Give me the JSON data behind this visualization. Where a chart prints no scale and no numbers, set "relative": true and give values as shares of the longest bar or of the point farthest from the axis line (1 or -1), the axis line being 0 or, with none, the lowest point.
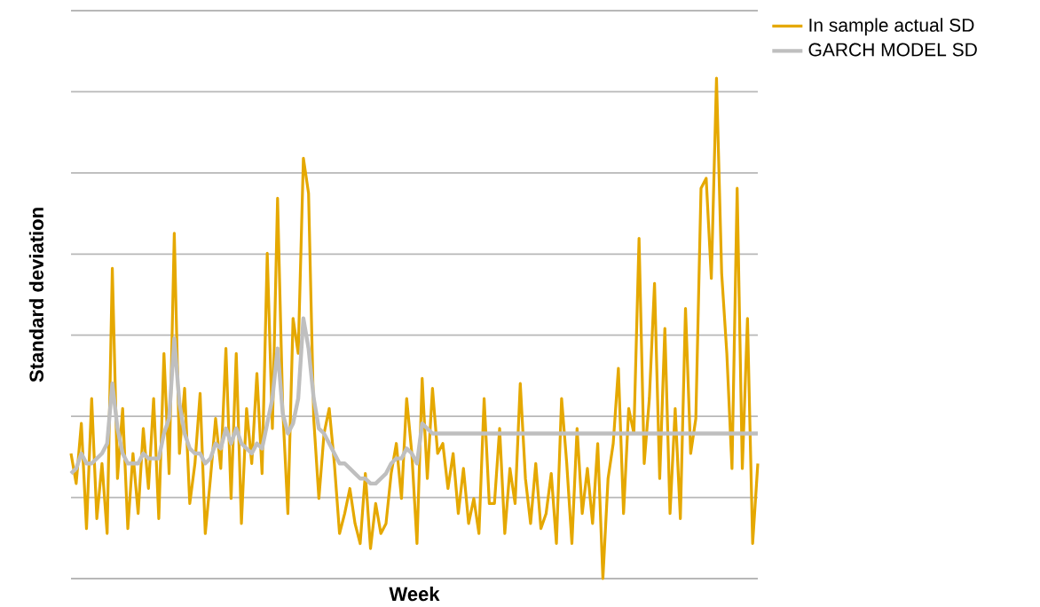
{
  "chart_data": {
    "type": "line",
    "relative": true,
    "xlabel": "Week",
    "ylabel": "Standard deviation",
    "grid": "y",
    "legend": "top right",
    "categories": [
      null,
      null,
      null,
      null,
      null,
      null,
      null,
      null,
      null,
      null,
      null,
      null,
      null,
      null,
      null,
      null,
      null,
      null,
      null,
      null,
      null,
      null,
      null,
      null,
      null,
      null,
      null,
      null,
      null,
      null,
      null,
      null,
      null,
      null,
      null,
      null,
      null,
      null,
      null,
      null,
      null,
      null,
      null,
      null,
      null,
      null,
      null,
      null,
      null,
      null,
      null,
      null,
      null,
      null,
      null,
      null,
      null,
      null,
      null,
      null,
      null,
      null,
      null,
      null,
      null,
      null,
      null,
      null,
      null,
      null,
      null,
      null,
      null,
      null,
      null,
      null,
      null,
      null,
      null,
      null,
      null,
      null,
      null,
      null,
      null,
      null,
      null,
      null,
      null,
      null,
      null,
      null,
      null,
      null,
      null,
      null,
      null,
      null,
      null,
      null,
      null,
      null,
      null,
      null,
      null,
      null,
      null,
      null,
      null,
      null,
      null,
      null,
      null,
      null,
      null,
      null,
      null,
      null,
      null,
      null,
      null,
      null,
      null,
      null,
      null,
      null,
      null,
      null,
      null,
      null,
      null,
      null,
      null,
      null
    ],
    "series": [
      {
        "name": "In sample actual SD",
        "color": "#e5a800",
        "values": [
          0.25,
          0.19,
          0.31,
          0.1,
          0.36,
          0.12,
          0.23,
          0.09,
          0.62,
          0.2,
          0.34,
          0.1,
          0.25,
          0.13,
          0.3,
          0.18,
          0.36,
          0.12,
          0.45,
          0.21,
          0.69,
          0.25,
          0.38,
          0.15,
          0.23,
          0.37,
          0.09,
          0.2,
          0.32,
          0.22,
          0.46,
          0.16,
          0.45,
          0.11,
          0.34,
          0.23,
          0.41,
          0.21,
          0.65,
          0.3,
          0.76,
          0.34,
          0.13,
          0.52,
          0.45,
          0.84,
          0.77,
          0.32,
          0.16,
          0.29,
          0.34,
          0.23,
          0.09,
          0.13,
          0.18,
          0.11,
          0.07,
          0.21,
          0.06,
          0.15,
          0.09,
          0.11,
          0.21,
          0.27,
          0.16,
          0.36,
          0.25,
          0.07,
          0.4,
          0.2,
          0.38,
          0.25,
          0.27,
          0.18,
          0.25,
          0.13,
          0.22,
          0.11,
          0.16,
          0.09,
          0.36,
          0.15,
          0.15,
          0.3,
          0.09,
          0.22,
          0.15,
          0.39,
          0.2,
          0.11,
          0.23,
          0.1,
          0.13,
          0.21,
          0.07,
          0.36,
          0.23,
          0.07,
          0.3,
          0.13,
          0.22,
          0.11,
          0.27,
          0.0,
          0.2,
          0.27,
          0.42,
          0.13,
          0.34,
          0.29,
          0.68,
          0.23,
          0.36,
          0.59,
          0.2,
          0.5,
          0.13,
          0.34,
          0.12,
          0.54,
          0.25,
          0.32,
          0.78,
          0.8,
          0.6,
          1.0,
          0.61,
          0.45,
          0.22,
          0.78,
          0.22,
          0.52,
          0.07,
          0.23
        ]
      },
      {
        "name": "GARCH MODEL SD",
        "color": "#bfbfbf",
        "values": [
          0.21,
          0.22,
          0.25,
          0.23,
          0.23,
          0.24,
          0.25,
          0.27,
          0.39,
          0.3,
          0.25,
          0.23,
          0.23,
          0.23,
          0.25,
          0.24,
          0.24,
          0.24,
          0.29,
          0.32,
          0.48,
          0.35,
          0.29,
          0.26,
          0.25,
          0.25,
          0.23,
          0.24,
          0.27,
          0.26,
          0.3,
          0.27,
          0.3,
          0.27,
          0.26,
          0.25,
          0.27,
          0.26,
          0.31,
          0.36,
          0.46,
          0.33,
          0.29,
          0.31,
          0.36,
          0.52,
          0.46,
          0.36,
          0.3,
          0.29,
          0.27,
          0.25,
          0.23,
          0.23,
          0.22,
          0.21,
          0.2,
          0.2,
          0.19,
          0.19,
          0.2,
          0.21,
          0.23,
          0.24,
          0.24,
          0.26,
          0.25,
          0.23,
          0.31,
          0.3,
          0.29,
          0.29,
          0.29,
          0.29,
          0.29,
          0.29,
          0.29,
          0.29,
          0.29,
          0.29,
          0.29,
          0.29,
          0.29,
          0.29,
          0.29,
          0.29,
          0.29,
          0.29,
          0.29,
          0.29,
          0.29,
          0.29,
          0.29,
          0.29,
          0.29,
          0.29,
          0.29,
          0.29,
          0.29,
          0.29,
          0.29,
          0.29,
          0.29,
          0.29,
          0.29,
          0.29,
          0.29,
          0.29,
          0.29,
          0.29,
          0.29,
          0.29,
          0.29,
          0.29,
          0.29,
          0.29,
          0.29,
          0.29,
          0.29,
          0.29,
          0.29,
          0.29,
          0.29,
          0.29,
          0.29,
          0.29,
          0.29,
          0.29,
          0.29,
          0.29,
          0.29,
          0.29,
          0.29,
          0.29
        ]
      }
    ]
  }
}
